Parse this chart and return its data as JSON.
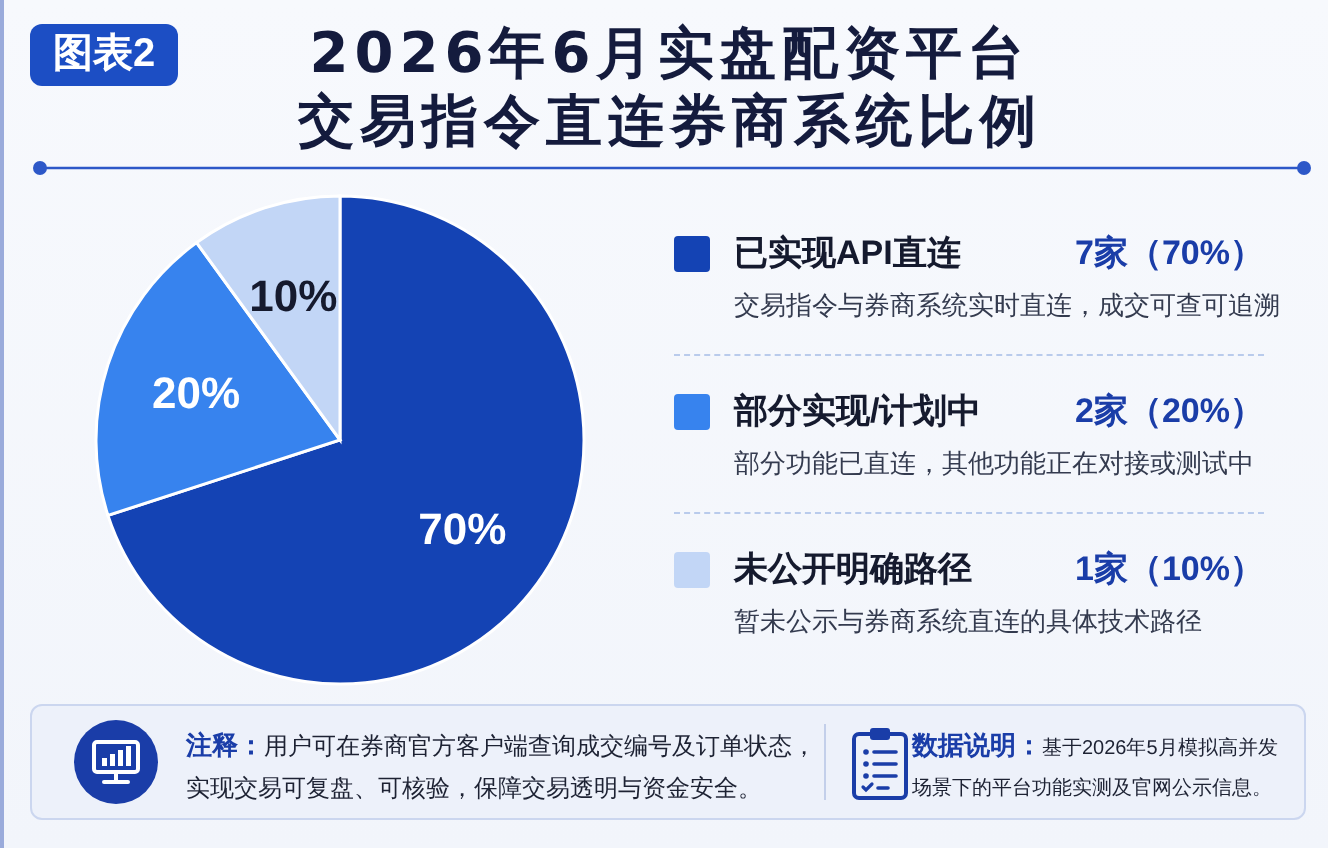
{
  "chart_data": {
    "type": "pie",
    "title": "2026年6月实盘配资平台交易指令直连券商系统比例",
    "categories": [
      "已实现API直连",
      "部分实现/计划中",
      "未公开明确路径"
    ],
    "values": [
      70,
      20,
      10
    ],
    "value_labels": [
      "70%",
      "20%",
      "10%"
    ],
    "colors": [
      "#1443b4",
      "#3783ee",
      "#c2d6f6"
    ],
    "legend": "right",
    "annotations": [
      "图表2",
      "7家（70%）",
      "交易指令与券商系统实时直连，成交可查可追溯",
      "2家（20%）",
      "部分功能已直连，其他功能正在对接或测试中",
      "1家（10%）",
      "暂未公示与券商系统直连的具体技术路径",
      "注释：",
      "用户可在券商官方客户端查询成交编号及订单状态，实现交易可复盘、可核验，保障交易透明与资金安全。",
      "数据说明：",
      "基于2026年5月模拟高并发场景下的平台功能实测及官网公示信息。"
    ]
  }
}
